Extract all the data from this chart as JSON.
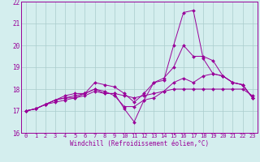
{
  "xlabel": "Windchill (Refroidissement éolien,°C)",
  "x_values": [
    0,
    1,
    2,
    3,
    4,
    5,
    6,
    7,
    8,
    9,
    10,
    11,
    12,
    13,
    14,
    15,
    16,
    17,
    18,
    19,
    20,
    21,
    22,
    23
  ],
  "series": [
    [
      17.0,
      17.1,
      17.3,
      17.5,
      17.6,
      17.6,
      17.7,
      17.9,
      17.8,
      17.8,
      17.1,
      16.5,
      17.5,
      18.3,
      18.4,
      20.0,
      21.5,
      21.6,
      19.4,
      18.7,
      18.6,
      18.3,
      18.2,
      17.6
    ],
    [
      17.0,
      17.1,
      17.3,
      17.4,
      17.5,
      17.6,
      17.8,
      18.0,
      17.9,
      17.7,
      17.2,
      17.2,
      17.5,
      17.6,
      17.9,
      18.3,
      18.5,
      18.3,
      18.6,
      18.7,
      18.6,
      18.3,
      18.2,
      17.6
    ],
    [
      17.0,
      17.1,
      17.3,
      17.5,
      17.7,
      17.8,
      17.8,
      18.3,
      18.2,
      18.1,
      17.8,
      17.4,
      17.8,
      18.3,
      18.5,
      19.0,
      20.0,
      19.5,
      19.5,
      19.3,
      18.6,
      18.3,
      18.2,
      17.6
    ],
    [
      17.0,
      17.1,
      17.3,
      17.5,
      17.6,
      17.7,
      17.8,
      18.0,
      17.8,
      17.8,
      17.7,
      17.6,
      17.7,
      17.8,
      17.9,
      18.0,
      18.0,
      18.0,
      18.0,
      18.0,
      18.0,
      18.0,
      18.0,
      17.7
    ]
  ],
  "line_color": "#990099",
  "marker": "D",
  "marker_size": 2,
  "bg_color": "#d4eeee",
  "grid_color": "#aacccc",
  "ylim": [
    16,
    22
  ],
  "xlim_min": -0.5,
  "xlim_max": 23.5,
  "yticks": [
    16,
    17,
    18,
    19,
    20,
    21,
    22
  ],
  "xticks": [
    0,
    1,
    2,
    3,
    4,
    5,
    6,
    7,
    8,
    9,
    10,
    11,
    12,
    13,
    14,
    15,
    16,
    17,
    18,
    19,
    20,
    21,
    22,
    23
  ],
  "tick_fontsize": 5,
  "xlabel_fontsize": 5.5
}
